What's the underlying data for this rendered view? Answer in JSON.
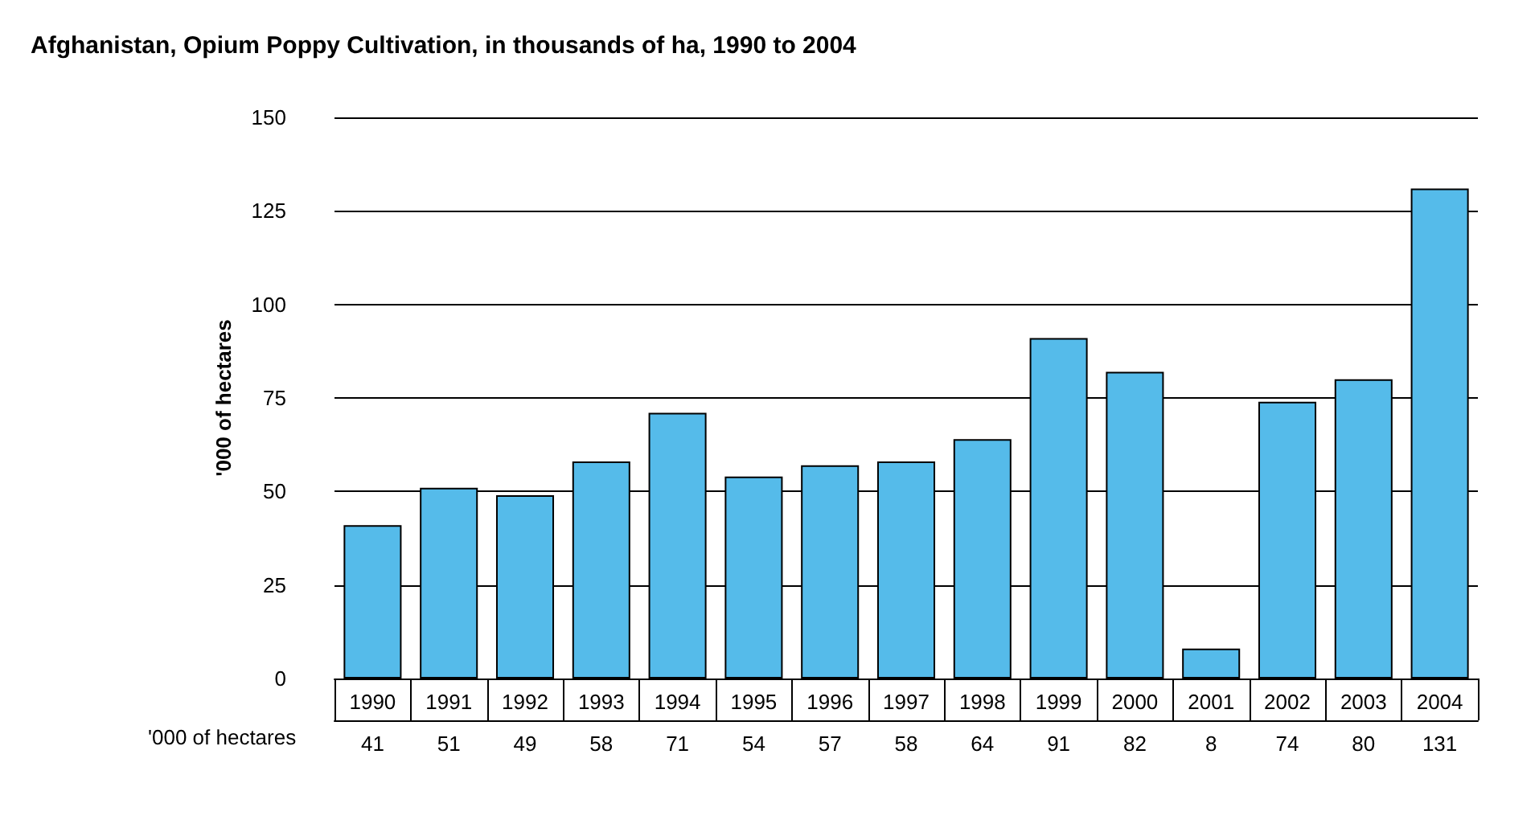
{
  "chart_data": {
    "type": "bar",
    "title": "Afghanistan, Opium Poppy Cultivation, in thousands of ha, 1990 to 2004",
    "ylabel": "'000 of hectares",
    "annotations": [
      "'000 of hectares"
    ],
    "categories": [
      "1990",
      "1991",
      "1992",
      "1993",
      "1994",
      "1995",
      "1996",
      "1997",
      "1998",
      "1999",
      "2000",
      "2001",
      "2002",
      "2003",
      "2004"
    ],
    "values": [
      41,
      51,
      49,
      58,
      71,
      54,
      57,
      58,
      64,
      91,
      82,
      8,
      74,
      80,
      131
    ],
    "color": "#55bbea",
    "ylim": [
      0,
      150
    ],
    "yticks": [
      0,
      25,
      50,
      75,
      100,
      125,
      150
    ],
    "grid": "y",
    "data_labels": true
  }
}
